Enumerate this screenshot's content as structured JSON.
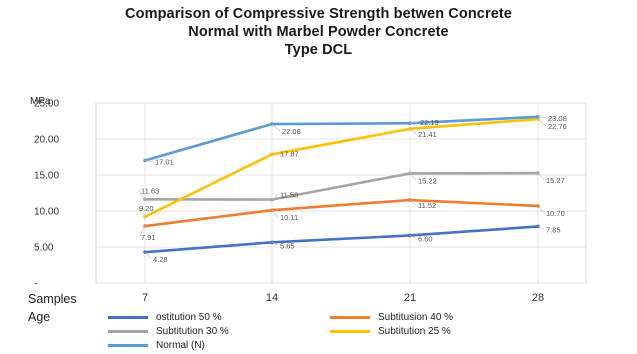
{
  "chart_data": {
    "type": "line",
    "title_lines": [
      "Comparison of Compressive Strength betwen Concrete",
      "Normal with Marbel Powder Concrete",
      "Type DCL"
    ],
    "ylabel": "MPa",
    "xlabel_lines": [
      "Samples",
      "Age"
    ],
    "categories": [
      "7",
      "14",
      "21",
      "28"
    ],
    "y_ticks": [
      "25.00",
      "20.00",
      "15.00",
      "10.00",
      "5.00",
      "-"
    ],
    "ylim": [
      0,
      25
    ],
    "grid": true,
    "legend_position": "bottom",
    "series": [
      {
        "name": "ostitution 50 %",
        "color": "#4472c4",
        "values": [
          4.28,
          5.65,
          6.6,
          7.85
        ],
        "labels": [
          "4.28",
          "5.65",
          "6.60",
          "7.85"
        ]
      },
      {
        "name": "Subtitusion 40 %",
        "color": "#ed7d31",
        "values": [
          7.91,
          10.11,
          11.52,
          10.7
        ],
        "labels": [
          "7.91",
          "10.11",
          "11.52",
          "10.70"
        ]
      },
      {
        "name": "Subtitution 30 %",
        "color": "#a5a5a5",
        "values": [
          11.63,
          11.58,
          15.22,
          15.27
        ],
        "labels": [
          "11.63",
          "11.58",
          "15.22",
          "15.27"
        ]
      },
      {
        "name": "Subtitution 25 %",
        "color": "#ffc000",
        "values": [
          9.2,
          17.87,
          21.41,
          22.76
        ],
        "labels": [
          "9.20",
          "17.87",
          "21.41",
          "22.76"
        ]
      },
      {
        "name": "Normal (N)",
        "color": "#5b9bd5",
        "values": [
          17.01,
          22.08,
          22.19,
          23.08
        ],
        "labels": [
          "17.01",
          "22.08",
          "22.19",
          "23.08"
        ]
      }
    ]
  }
}
